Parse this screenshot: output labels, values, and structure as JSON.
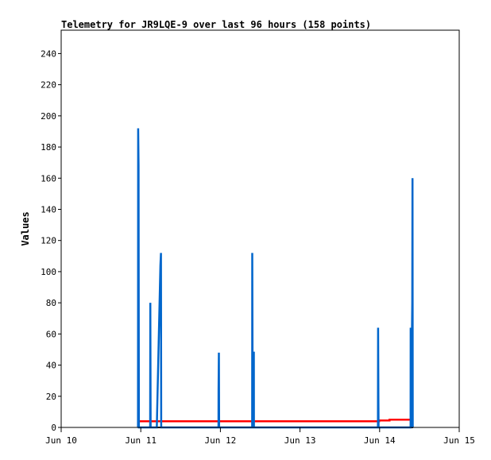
{
  "chart_data": {
    "type": "line",
    "title": "Telemetry for JR9LQE-9 over last 96 hours (158 points)",
    "xlabel": "",
    "ylabel": "Values",
    "xlim": [
      "Jun 10 00:00",
      "Jun 15 00:00"
    ],
    "ylim": [
      0,
      255
    ],
    "grid": false,
    "x_ticks": [
      "Jun 10",
      "Jun 11",
      "Jun 12",
      "Jun 13",
      "Jun 14",
      "Jun 15"
    ],
    "y_ticks": [
      0,
      20,
      40,
      60,
      80,
      100,
      120,
      140,
      160,
      180,
      200,
      220,
      240
    ],
    "series": [
      {
        "color": "#000000",
        "points": [
          [
            "Jun 10 23:10",
            0
          ],
          [
            "Jun 14 10:05",
            0
          ]
        ]
      },
      {
        "color": "#ff0000",
        "points": [
          [
            "Jun 10 23:10",
            4
          ],
          [
            "Jun 13 23:50",
            4
          ],
          [
            "Jun 13 23:50",
            4.5
          ],
          [
            "Jun 14 03:00",
            4.5
          ],
          [
            "Jun 14 03:00",
            5
          ],
          [
            "Jun 14 09:30",
            5
          ],
          [
            "Jun 14 09:30",
            2
          ]
        ]
      },
      {
        "color": "#0066cc",
        "points": [
          [
            "Jun 10 23:10",
            0
          ],
          [
            "Jun 10 23:12",
            192
          ],
          [
            "Jun 10 23:20",
            168
          ],
          [
            "Jun 10 23:25",
            0
          ],
          [
            "Jun 11 02:50",
            0
          ],
          [
            "Jun 11 02:52",
            80
          ],
          [
            "Jun 11 02:58",
            0
          ],
          [
            "Jun 11 04:50",
            0
          ],
          [
            "Jun 11 04:55",
            8
          ],
          [
            "Jun 11 05:05",
            24
          ],
          [
            "Jun 11 05:15",
            40
          ],
          [
            "Jun 11 05:25",
            56
          ],
          [
            "Jun 11 05:35",
            72
          ],
          [
            "Jun 11 05:45",
            88
          ],
          [
            "Jun 11 05:55",
            104
          ],
          [
            "Jun 11 06:05",
            112
          ],
          [
            "Jun 11 06:10",
            0
          ],
          [
            "Jun 11 23:25",
            0
          ],
          [
            "Jun 11 23:27",
            24
          ],
          [
            "Jun 11 23:32",
            48
          ],
          [
            "Jun 11 23:37",
            0
          ],
          [
            "Jun 12 09:35",
            0
          ],
          [
            "Jun 12 09:37",
            112
          ],
          [
            "Jun 12 09:45",
            0
          ],
          [
            "Jun 12 09:55",
            48
          ],
          [
            "Jun 12 10:05",
            48
          ],
          [
            "Jun 12 10:07",
            0
          ],
          [
            "Jun 13 23:30",
            0
          ],
          [
            "Jun 13 23:32",
            64
          ],
          [
            "Jun 13 23:38",
            16
          ],
          [
            "Jun 13 23:42",
            0
          ],
          [
            "Jun 14 09:20",
            0
          ],
          [
            "Jun 14 09:22",
            64
          ],
          [
            "Jun 14 09:28",
            0
          ],
          [
            "Jun 14 09:50",
            80
          ],
          [
            "Jun 14 09:55",
            160
          ],
          [
            "Jun 14 10:00",
            0
          ]
        ]
      }
    ]
  }
}
